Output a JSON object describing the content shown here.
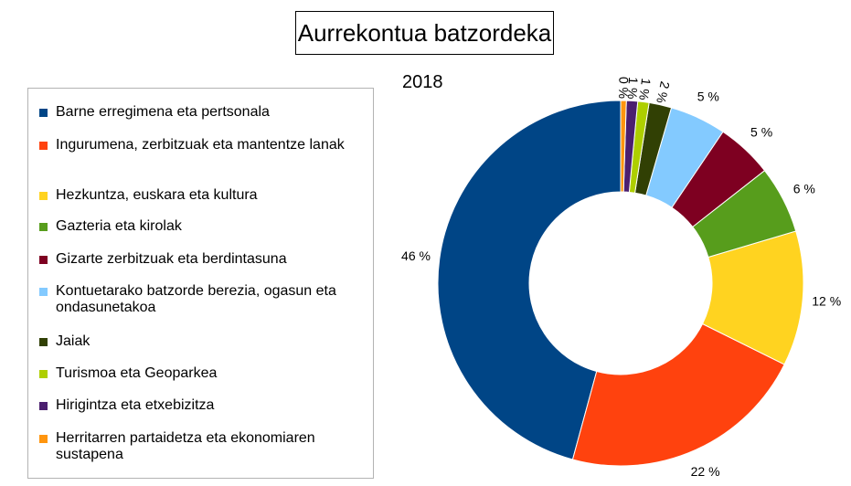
{
  "chart_data": {
    "type": "pie",
    "variant": "donut",
    "title": "Aurrekontua batzordeka",
    "subtitle": "2018",
    "legend_position": "left",
    "categories": [
      "Barne erregimena eta pertsonala",
      "Ingurumena, zerbitzuak eta mantentze lanak",
      "Hezkuntza, euskara eta kultura",
      "Gazteria eta kirolak",
      "Gizarte zerbitzuak eta berdintasuna",
      "Kontuetarako batzorde berezia, ogasun eta ondasunetakoa",
      "Jaiak",
      "Turismoa eta Geoparkea",
      "Hirigintza eta etxebizitza",
      "Herritarren partaidetza eta ekonomiaren sustapena"
    ],
    "values": [
      46,
      22,
      12,
      6,
      5,
      5,
      2,
      1,
      1,
      0.5
    ],
    "data_labels": [
      "46 %",
      "22 %",
      "12 %",
      "6 %",
      "5 %",
      "5 %",
      "2 %",
      "1 %",
      "1 %",
      "0 %"
    ],
    "colors": [
      "#004586",
      "#ff420e",
      "#ffd320",
      "#579d1c",
      "#7e0021",
      "#83caff",
      "#314004",
      "#aecf00",
      "#4b1f6f",
      "#ff950e"
    ]
  }
}
